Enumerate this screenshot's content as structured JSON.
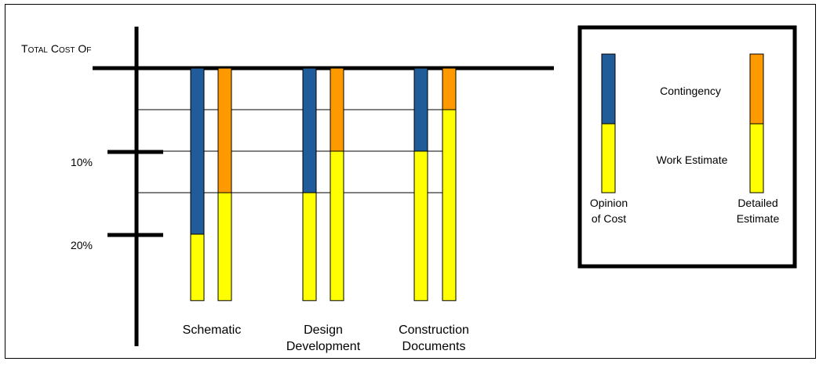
{
  "chart_data": {
    "type": "bar",
    "title": "Total Cost of",
    "ylabel": "",
    "xlabel": "",
    "y_ticks": [
      {
        "label": "10%",
        "value": 10
      },
      {
        "label": "20%",
        "value": 20
      }
    ],
    "ylim": [
      0,
      28
    ],
    "y_direction": "downward from total cost line",
    "categories": [
      {
        "line1": "Schematic",
        "line2": ""
      },
      {
        "line1": "Design",
        "line2": "Development"
      },
      {
        "line1": "Construction",
        "line2": "Documents"
      }
    ],
    "series": [
      {
        "name": "Opinion of Cost",
        "contingency": [
          20,
          15,
          10
        ],
        "work_estimate": [
          8,
          13,
          18
        ]
      },
      {
        "name": "Detailed Estimate",
        "contingency": [
          15,
          10,
          5
        ],
        "work_estimate": [
          13,
          18,
          23
        ]
      }
    ],
    "reference_lines": [
      5,
      10,
      15
    ],
    "colors": {
      "contingency": "#1f5c99",
      "work_estimate": "#ffff00",
      "contingency_detailed": "#ff9900",
      "work_estimate_detailed": "#ffff00"
    }
  },
  "legend": {
    "contingency_label": "Contingency",
    "work_estimate_label": "Work Estimate",
    "opinion_label_1": "Opinion",
    "opinion_label_2": "of Cost",
    "detailed_label_1": "Detailed",
    "detailed_label_2": "Estimate"
  }
}
